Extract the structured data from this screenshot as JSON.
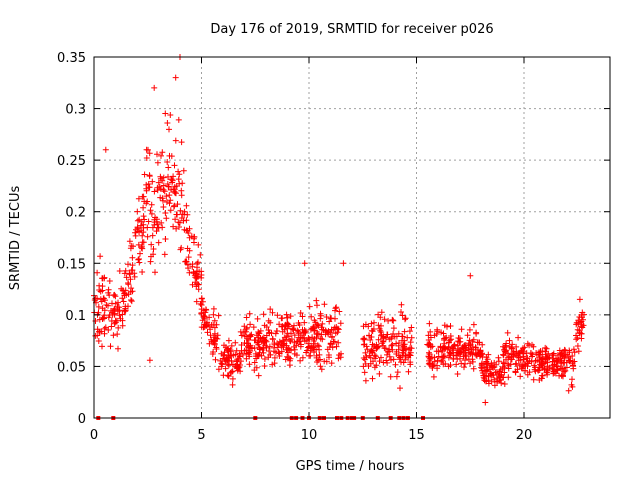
{
  "chart_data": {
    "type": "scatter",
    "title": "Day 176 of 2019, SRMTID for receiver p026",
    "xlabel": "GPS time / hours",
    "ylabel": "SRMTID / TECUs",
    "xlim": [
      0,
      24
    ],
    "ylim": [
      0,
      0.35
    ],
    "x_ticks": [
      0,
      5,
      10,
      15,
      20
    ],
    "x_tick_labels": [
      "0",
      "5",
      "10",
      "15",
      "20"
    ],
    "y_ticks": [
      0,
      0.05,
      0.1,
      0.15,
      0.2,
      0.25,
      0.3,
      0.35
    ],
    "y_tick_labels": [
      "0",
      "0.05",
      "0.1",
      "0.15",
      "0.2",
      "0.25",
      "0.3",
      "0.35"
    ],
    "grid": true,
    "marker": "+",
    "color": "#ff0000",
    "series": [
      {
        "name": "SRMTID",
        "profile_note": "approximate envelope of the dense scatter read from the figure",
        "segments": [
          {
            "x_range": [
              0.0,
              0.3
            ],
            "center": [
              0.1,
              0.11
            ],
            "spread": 0.035
          },
          {
            "x_range": [
              0.3,
              1.0
            ],
            "center": [
              0.11,
              0.1
            ],
            "spread": 0.03
          },
          {
            "x_range": [
              1.0,
              1.8
            ],
            "center": [
              0.1,
              0.14
            ],
            "spread": 0.035
          },
          {
            "x_range": [
              1.8,
              2.6
            ],
            "center": [
              0.15,
              0.22
            ],
            "spread": 0.05
          },
          {
            "x_range": [
              2.6,
              3.6
            ],
            "center": [
              0.19,
              0.23
            ],
            "spread": 0.055
          },
          {
            "x_range": [
              3.6,
              4.3
            ],
            "center": [
              0.23,
              0.2
            ],
            "spread": 0.055
          },
          {
            "x_range": [
              4.3,
              5.0
            ],
            "center": [
              0.17,
              0.12
            ],
            "spread": 0.04
          },
          {
            "x_range": [
              5.0,
              5.8
            ],
            "center": [
              0.1,
              0.07
            ],
            "spread": 0.025
          },
          {
            "x_range": [
              5.8,
              6.8
            ],
            "center": [
              0.06,
              0.05
            ],
            "spread": 0.02
          },
          {
            "x_range": [
              6.8,
              8.5
            ],
            "center": [
              0.07,
              0.07
            ],
            "spread": 0.025
          },
          {
            "x_range": [
              8.5,
              10.0
            ],
            "center": [
              0.08,
              0.07
            ],
            "spread": 0.025
          },
          {
            "x_range": [
              10.0,
              11.5
            ],
            "center": [
              0.08,
              0.08
            ],
            "spread": 0.03
          },
          {
            "x_range": [
              12.5,
              14.8
            ],
            "center": [
              0.07,
              0.07
            ],
            "spread": 0.03
          },
          {
            "x_range": [
              15.5,
              18.0
            ],
            "center": [
              0.065,
              0.065
            ],
            "spread": 0.02
          },
          {
            "x_range": [
              18.0,
              19.0
            ],
            "center": [
              0.05,
              0.04
            ],
            "spread": 0.015
          },
          {
            "x_range": [
              19.0,
              22.4
            ],
            "center": [
              0.06,
              0.05
            ],
            "spread": 0.018
          },
          {
            "x_range": [
              22.4,
              22.8
            ],
            "center": [
              0.08,
              0.09
            ],
            "spread": 0.02
          }
        ],
        "notable_points": [
          {
            "x": 0.55,
            "y": 0.26
          },
          {
            "x": 2.8,
            "y": 0.32
          },
          {
            "x": 4.0,
            "y": 0.35
          },
          {
            "x": 3.8,
            "y": 0.33
          },
          {
            "x": 2.6,
            "y": 0.056
          },
          {
            "x": 9.8,
            "y": 0.15
          },
          {
            "x": 11.6,
            "y": 0.15
          },
          {
            "x": 17.5,
            "y": 0.138
          },
          {
            "x": 18.2,
            "y": 0.015
          },
          {
            "x": 22.6,
            "y": 0.115
          }
        ],
        "zero_points_x": [
          0.2,
          0.9,
          7.5,
          9.2,
          9.4,
          9.7,
          10.0,
          10.5,
          10.7,
          11.3,
          11.5,
          11.8,
          12.0,
          12.1,
          12.5,
          13.2,
          13.8,
          14.2,
          14.4,
          14.6,
          15.3
        ]
      }
    ]
  }
}
